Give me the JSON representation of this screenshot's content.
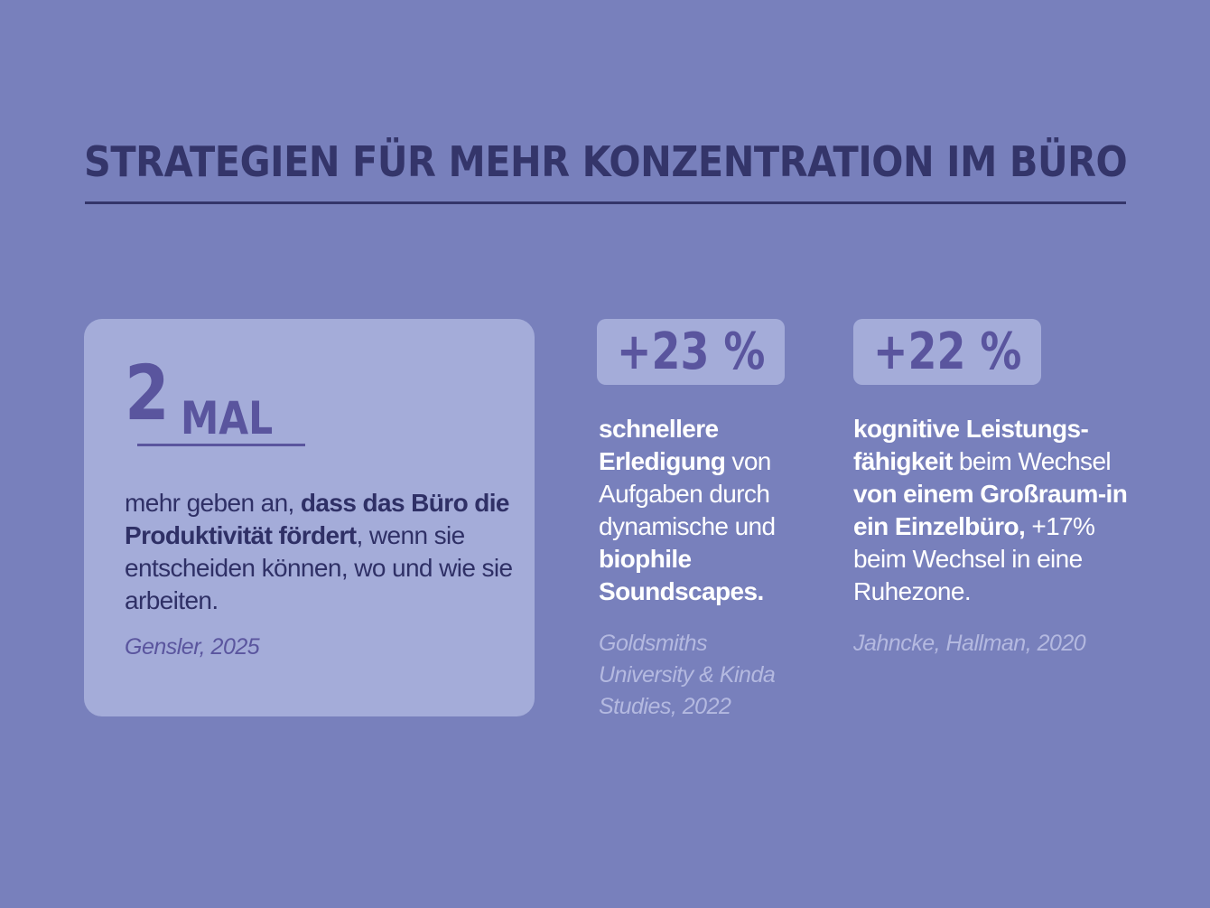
{
  "header": {
    "title": "STRATEGIEN FÜR MEHR KONZENTRATION IM BÜRO"
  },
  "card": {
    "number": "2",
    "unit": "MAL",
    "text_plain_1": "mehr geben an, ",
    "text_bold_1": "dass das Büro die Produktivität fördert",
    "text_plain_2": ", wenn sie entscheiden können, wo und wie sie arbeiten.",
    "source": "Gensler, 2025"
  },
  "stats": [
    {
      "value": "+23 %",
      "bold_1": "schnellere Erledigung",
      "plain_1": " von Aufgaben durch dynamische und ",
      "bold_2": "biophile Soundscapes.",
      "source": "Goldsmiths University & Kinda Studies, 2022"
    },
    {
      "value": "+22 %",
      "bold_1": "kognitive Leistungs-fähigkeit",
      "plain_1": " beim Wechsel ",
      "bold_2": "von einem Großraum-in ein Einzelbüro,",
      "plain_2": " +17% beim Wechsel in eine Ruhezone.",
      "source": "Jahncke, Hallman, 2020"
    }
  ],
  "colors": {
    "background": "#7880bc",
    "card": "#a4acd9",
    "accent": "#5a559e",
    "dark_text": "#34356a",
    "light_text": "#ffffff",
    "source_text": "#b4b9e0"
  }
}
